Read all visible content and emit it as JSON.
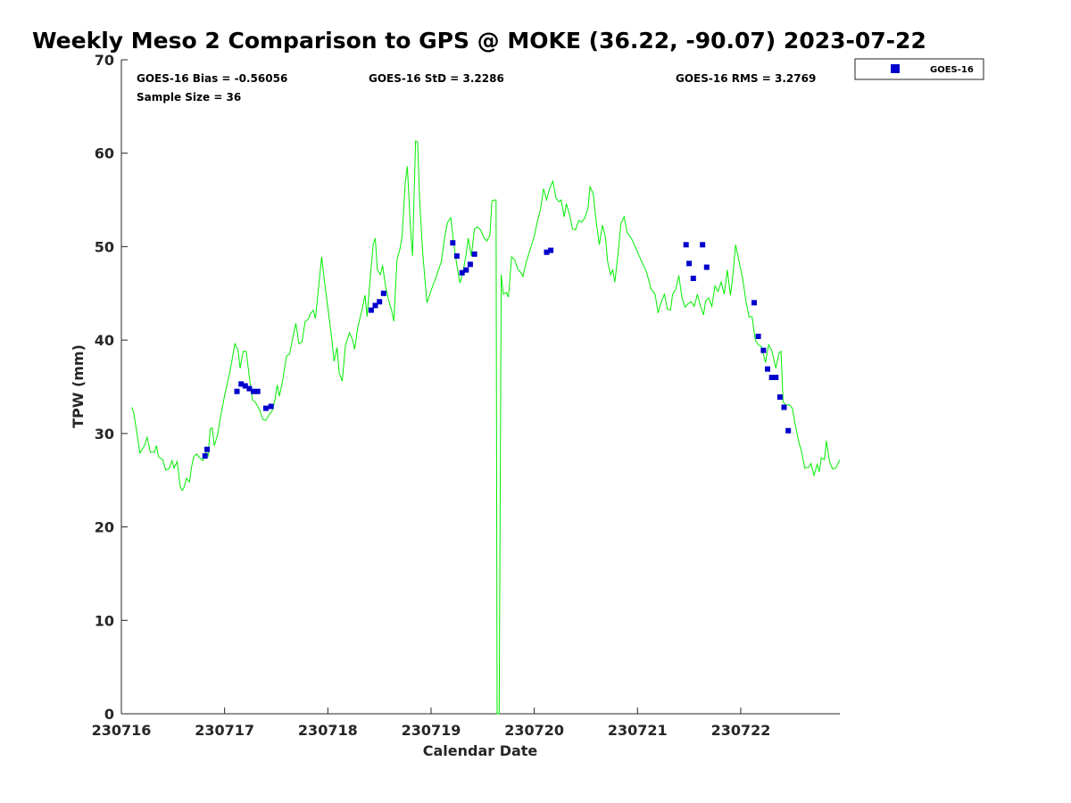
{
  "chart_data": {
    "type": "scatter",
    "title": "Weekly Meso 2 Comparison to GPS @ MOKE (36.22, -90.07) 2023-07-22",
    "xlabel": "Calendar Date",
    "ylabel": "TPW (mm)",
    "xlim": [
      0,
      6.96
    ],
    "ylim": [
      0,
      70
    ],
    "x_tick_labels": [
      "230716",
      "230717",
      "230718",
      "230719",
      "230720",
      "230721",
      "230722"
    ],
    "x_tick_values": [
      0,
      1,
      2,
      3,
      4,
      5,
      6
    ],
    "y_ticks": [
      0,
      10,
      20,
      30,
      40,
      50,
      60,
      70
    ],
    "grid": false,
    "legend_position": "top-right outside",
    "stats": {
      "bias": "GOES-16 Bias = -0.56056",
      "std": "GOES-16 StD = 3.2286",
      "rms": "GOES-16 RMS = 3.2769",
      "sample": "Sample Size = 36"
    },
    "series": [
      {
        "name": "GOES-16",
        "kind": "scatter",
        "color": "#0000cc",
        "marker": "square",
        "points": [
          [
            0.81,
            27.6
          ],
          [
            0.83,
            28.3
          ],
          [
            1.12,
            34.5
          ],
          [
            1.16,
            35.3
          ],
          [
            1.2,
            35.1
          ],
          [
            1.24,
            34.8
          ],
          [
            1.28,
            34.5
          ],
          [
            1.32,
            34.5
          ],
          [
            1.4,
            32.7
          ],
          [
            1.45,
            32.9
          ],
          [
            2.42,
            43.2
          ],
          [
            2.46,
            43.7
          ],
          [
            2.5,
            44.1
          ],
          [
            2.54,
            45.0
          ],
          [
            3.21,
            50.4
          ],
          [
            3.25,
            49.0
          ],
          [
            3.3,
            47.2
          ],
          [
            3.34,
            47.5
          ],
          [
            3.38,
            48.1
          ],
          [
            3.42,
            49.2
          ],
          [
            4.12,
            49.4
          ],
          [
            4.16,
            49.6
          ],
          [
            5.47,
            50.2
          ],
          [
            5.5,
            48.2
          ],
          [
            5.54,
            46.6
          ],
          [
            5.63,
            50.2
          ],
          [
            5.67,
            47.8
          ],
          [
            6.13,
            44.0
          ],
          [
            6.17,
            40.4
          ],
          [
            6.22,
            38.9
          ],
          [
            6.26,
            36.9
          ],
          [
            6.3,
            36.0
          ],
          [
            6.34,
            36.0
          ],
          [
            6.38,
            33.9
          ],
          [
            6.42,
            32.8
          ],
          [
            6.46,
            30.3
          ]
        ]
      },
      {
        "kind": "line",
        "color": "#00ee00",
        "points": [
          [
            0.1,
            32.8
          ],
          [
            0.12,
            32.2
          ],
          [
            0.15,
            30.1
          ],
          [
            0.18,
            27.9
          ],
          [
            0.22,
            28.6
          ],
          [
            0.25,
            29.6
          ],
          [
            0.28,
            28.0
          ],
          [
            0.32,
            28.0
          ],
          [
            0.34,
            28.7
          ],
          [
            0.36,
            27.5
          ],
          [
            0.4,
            27.2
          ],
          [
            0.43,
            26.1
          ],
          [
            0.46,
            26.2
          ],
          [
            0.49,
            27.1
          ],
          [
            0.51,
            26.3
          ],
          [
            0.54,
            27.0
          ],
          [
            0.57,
            24.3
          ],
          [
            0.59,
            23.9
          ],
          [
            0.61,
            24.3
          ],
          [
            0.63,
            25.2
          ],
          [
            0.66,
            24.8
          ],
          [
            0.68,
            26.4
          ],
          [
            0.7,
            27.5
          ],
          [
            0.73,
            27.8
          ],
          [
            0.76,
            27.4
          ],
          [
            0.79,
            27.1
          ],
          [
            0.82,
            28.0
          ],
          [
            0.84,
            27.6
          ],
          [
            0.86,
            30.5
          ],
          [
            0.88,
            30.6
          ],
          [
            0.9,
            28.7
          ],
          [
            0.93,
            29.8
          ],
          [
            0.96,
            31.7
          ],
          [
            1.0,
            34.1
          ],
          [
            1.05,
            36.5
          ],
          [
            1.1,
            39.6
          ],
          [
            1.13,
            38.9
          ],
          [
            1.15,
            37.0
          ],
          [
            1.18,
            38.8
          ],
          [
            1.21,
            38.8
          ],
          [
            1.24,
            36.0
          ],
          [
            1.27,
            33.6
          ],
          [
            1.3,
            33.3
          ],
          [
            1.34,
            32.5
          ],
          [
            1.37,
            31.5
          ],
          [
            1.4,
            31.4
          ],
          [
            1.43,
            32.0
          ],
          [
            1.46,
            32.4
          ],
          [
            1.49,
            33.7
          ],
          [
            1.51,
            35.2
          ],
          [
            1.53,
            34.0
          ],
          [
            1.56,
            35.5
          ],
          [
            1.6,
            38.3
          ],
          [
            1.63,
            38.5
          ],
          [
            1.66,
            40.2
          ],
          [
            1.69,
            41.8
          ],
          [
            1.72,
            39.6
          ],
          [
            1.75,
            39.8
          ],
          [
            1.78,
            42.0
          ],
          [
            1.81,
            42.2
          ],
          [
            1.83,
            42.8
          ],
          [
            1.86,
            43.2
          ],
          [
            1.88,
            42.3
          ],
          [
            1.91,
            45.6
          ],
          [
            1.94,
            48.9
          ],
          [
            1.97,
            46.0
          ],
          [
            2.0,
            43.5
          ],
          [
            2.04,
            40.0
          ],
          [
            2.06,
            37.7
          ],
          [
            2.09,
            39.2
          ],
          [
            2.11,
            36.5
          ],
          [
            2.14,
            35.6
          ],
          [
            2.17,
            39.4
          ],
          [
            2.21,
            40.8
          ],
          [
            2.24,
            40.0
          ],
          [
            2.26,
            39.0
          ],
          [
            2.29,
            41.4
          ],
          [
            2.33,
            43.2
          ],
          [
            2.36,
            44.8
          ],
          [
            2.38,
            42.5
          ],
          [
            2.41,
            46.5
          ],
          [
            2.44,
            50.3
          ],
          [
            2.46,
            50.9
          ],
          [
            2.48,
            47.5
          ],
          [
            2.51,
            47.0
          ],
          [
            2.53,
            48.0
          ],
          [
            2.56,
            45.7
          ],
          [
            2.59,
            44.2
          ],
          [
            2.62,
            43.1
          ],
          [
            2.64,
            42.0
          ],
          [
            2.67,
            48.6
          ],
          [
            2.7,
            49.8
          ],
          [
            2.72,
            51.2
          ],
          [
            2.75,
            56.9
          ],
          [
            2.77,
            58.6
          ],
          [
            2.8,
            52.0
          ],
          [
            2.82,
            49.0
          ],
          [
            2.85,
            61.3
          ],
          [
            2.87,
            61.2
          ],
          [
            2.89,
            54.7
          ],
          [
            2.92,
            49.3
          ],
          [
            2.94,
            46.6
          ],
          [
            2.96,
            44.0
          ],
          [
            3.0,
            45.3
          ],
          [
            3.05,
            46.8
          ],
          [
            3.1,
            48.4
          ],
          [
            3.13,
            50.9
          ],
          [
            3.16,
            52.6
          ],
          [
            3.19,
            53.1
          ],
          [
            3.22,
            50.3
          ],
          [
            3.25,
            48.0
          ],
          [
            3.28,
            46.1
          ],
          [
            3.31,
            47.3
          ],
          [
            3.34,
            49.2
          ],
          [
            3.36,
            50.9
          ],
          [
            3.39,
            49.0
          ],
          [
            3.42,
            51.9
          ],
          [
            3.45,
            52.1
          ],
          [
            3.48,
            51.8
          ],
          [
            3.51,
            51.0
          ],
          [
            3.54,
            50.6
          ],
          [
            3.57,
            51.2
          ],
          [
            3.59,
            54.9
          ],
          [
            3.62,
            55.0
          ],
          [
            3.63,
            55.0
          ],
          [
            3.64,
            0.0
          ],
          [
            3.66,
            0.0
          ],
          [
            3.68,
            47.0
          ],
          [
            3.7,
            44.9
          ],
          [
            3.73,
            45.1
          ],
          [
            3.75,
            44.6
          ],
          [
            3.78,
            48.9
          ],
          [
            3.81,
            48.6
          ],
          [
            3.84,
            47.6
          ],
          [
            3.87,
            47.2
          ],
          [
            3.89,
            46.8
          ],
          [
            3.92,
            48.3
          ],
          [
            3.96,
            49.7
          ],
          [
            4.0,
            51.1
          ],
          [
            4.03,
            52.7
          ],
          [
            4.06,
            54.0
          ],
          [
            4.09,
            56.2
          ],
          [
            4.12,
            55.0
          ],
          [
            4.15,
            56.3
          ],
          [
            4.18,
            57.0
          ],
          [
            4.21,
            55.2
          ],
          [
            4.24,
            54.8
          ],
          [
            4.26,
            55.0
          ],
          [
            4.29,
            53.2
          ],
          [
            4.31,
            54.6
          ],
          [
            4.34,
            53.5
          ],
          [
            4.37,
            51.9
          ],
          [
            4.4,
            51.8
          ],
          [
            4.43,
            52.8
          ],
          [
            4.46,
            52.6
          ],
          [
            4.49,
            53.1
          ],
          [
            4.52,
            54.1
          ],
          [
            4.54,
            56.4
          ],
          [
            4.57,
            55.7
          ],
          [
            4.6,
            52.7
          ],
          [
            4.63,
            50.2
          ],
          [
            4.66,
            52.3
          ],
          [
            4.69,
            51.0
          ],
          [
            4.71,
            48.4
          ],
          [
            4.74,
            47.0
          ],
          [
            4.76,
            47.5
          ],
          [
            4.78,
            46.2
          ],
          [
            4.81,
            49.1
          ],
          [
            4.84,
            52.5
          ],
          [
            4.87,
            53.2
          ],
          [
            4.9,
            51.5
          ],
          [
            4.94,
            50.9
          ],
          [
            4.99,
            49.7
          ],
          [
            5.04,
            48.4
          ],
          [
            5.09,
            47.2
          ],
          [
            5.13,
            45.5
          ],
          [
            5.17,
            44.9
          ],
          [
            5.2,
            42.9
          ],
          [
            5.23,
            44.1
          ],
          [
            5.26,
            44.9
          ],
          [
            5.29,
            43.3
          ],
          [
            5.32,
            43.2
          ],
          [
            5.34,
            44.9
          ],
          [
            5.37,
            45.4
          ],
          [
            5.4,
            46.9
          ],
          [
            5.43,
            44.6
          ],
          [
            5.46,
            43.5
          ],
          [
            5.49,
            43.9
          ],
          [
            5.52,
            44.1
          ],
          [
            5.55,
            43.6
          ],
          [
            5.58,
            44.9
          ],
          [
            5.61,
            43.6
          ],
          [
            5.64,
            42.7
          ],
          [
            5.66,
            44.2
          ],
          [
            5.69,
            44.5
          ],
          [
            5.72,
            43.6
          ],
          [
            5.75,
            45.8
          ],
          [
            5.78,
            45.2
          ],
          [
            5.81,
            46.2
          ],
          [
            5.84,
            44.9
          ],
          [
            5.87,
            47.5
          ],
          [
            5.9,
            44.8
          ],
          [
            5.92,
            46.5
          ],
          [
            5.95,
            50.2
          ],
          [
            5.98,
            48.6
          ],
          [
            6.02,
            46.5
          ],
          [
            6.05,
            44.2
          ],
          [
            6.08,
            42.5
          ],
          [
            6.11,
            42.5
          ],
          [
            6.14,
            40.0
          ],
          [
            6.17,
            39.5
          ],
          [
            6.2,
            39.3
          ],
          [
            6.24,
            37.6
          ],
          [
            6.27,
            39.5
          ],
          [
            6.3,
            38.9
          ],
          [
            6.34,
            37.0
          ],
          [
            6.37,
            38.6
          ],
          [
            6.39,
            38.8
          ],
          [
            6.41,
            33.4
          ],
          [
            6.44,
            33.0
          ],
          [
            6.47,
            33.1
          ],
          [
            6.5,
            32.7
          ],
          [
            6.53,
            30.8
          ],
          [
            6.56,
            29.2
          ],
          [
            6.59,
            28.0
          ],
          [
            6.62,
            26.3
          ],
          [
            6.66,
            26.4
          ],
          [
            6.68,
            26.8
          ],
          [
            6.71,
            25.5
          ],
          [
            6.74,
            26.7
          ],
          [
            6.76,
            25.9
          ],
          [
            6.78,
            27.4
          ],
          [
            6.81,
            27.2
          ],
          [
            6.83,
            29.2
          ],
          [
            6.86,
            27.0
          ],
          [
            6.89,
            26.2
          ],
          [
            6.92,
            26.3
          ],
          [
            6.96,
            27.2
          ]
        ]
      }
    ]
  }
}
